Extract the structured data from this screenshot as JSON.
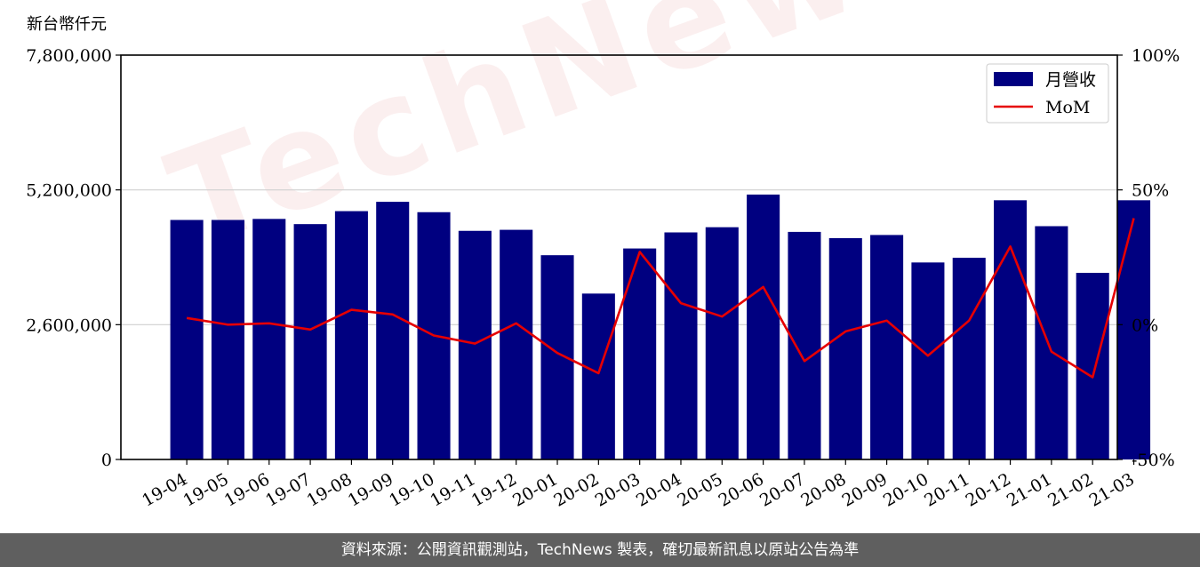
{
  "watermark": "TechNews",
  "footer": "資料來源：公開資訊觀測站，TechNews 製表，確切最新訊息以原站公告為準",
  "chart_data": {
    "type": "bar+line",
    "y_unit_label": "新台幣仟元",
    "categories": [
      "19-04",
      "19-05",
      "19-06",
      "19-07",
      "19-08",
      "19-09",
      "19-10",
      "19-11",
      "19-12",
      "20-01",
      "20-02",
      "20-03",
      "20-04",
      "20-05",
      "20-06",
      "20-07",
      "20-08",
      "20-09",
      "20-10",
      "20-11",
      "20-12",
      "21-01",
      "21-02",
      "21-03"
    ],
    "series": [
      {
        "name": "月營收",
        "axis": "left",
        "type": "bar",
        "color": "#000080",
        "values": [
          4620000,
          4620000,
          4640000,
          4540000,
          4790000,
          4970000,
          4770000,
          4410000,
          4430000,
          3940000,
          3200000,
          4070000,
          4380000,
          4480000,
          5110000,
          4390000,
          4270000,
          4330000,
          3800000,
          3890000,
          5000000,
          4500000,
          3600000,
          5000000
        ]
      },
      {
        "name": "MoM",
        "axis": "right",
        "type": "line",
        "color": "#e60000",
        "values": [
          2.5,
          0,
          0.5,
          -1.8,
          5.5,
          3.8,
          -4,
          -7,
          0.5,
          -10.5,
          -18,
          27,
          8,
          3,
          14,
          -13.5,
          -2.5,
          1.5,
          -11.5,
          1.5,
          29,
          -10,
          -19.5,
          39.5
        ]
      }
    ],
    "y_left": {
      "min": 0,
      "max": 7800000,
      "ticks": [
        0,
        2600000,
        5200000,
        7800000
      ],
      "tick_labels": [
        "0",
        "2,600,000",
        "5,200,000",
        "7,800,000"
      ]
    },
    "y_right": {
      "min": -50,
      "max": 100,
      "ticks": [
        -50,
        0,
        50,
        100
      ],
      "tick_labels": [
        "-50%",
        "0%",
        "50%",
        "100%"
      ]
    },
    "grid": "horizontal",
    "legend_position": "top-right"
  }
}
